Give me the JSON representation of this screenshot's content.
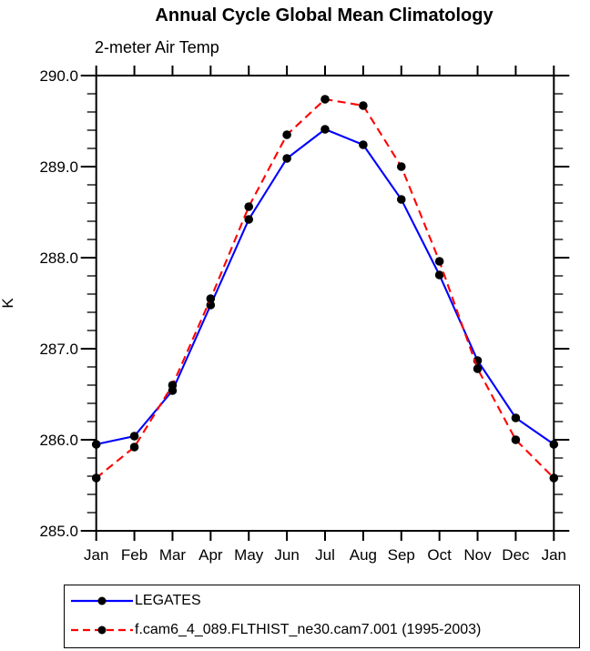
{
  "chart_data": {
    "type": "line",
    "title": "Annual Cycle Global Mean Climatology",
    "subtitle": "2-meter Air Temp",
    "xlabel": "",
    "ylabel": "K",
    "categories": [
      "Jan",
      "Feb",
      "Mar",
      "Apr",
      "May",
      "Jun",
      "Jul",
      "Aug",
      "Sep",
      "Oct",
      "Nov",
      "Dec",
      "Jan"
    ],
    "ylim": [
      285.0,
      290.0
    ],
    "y_major_step": 1.0,
    "y_minor_step": 0.2,
    "y_tick_labels": [
      "285.0",
      "286.0",
      "287.0",
      "288.0",
      "289.0",
      "290.0"
    ],
    "grid": false,
    "legend_position": "bottom-left-box",
    "axis_color": "#000000",
    "marker_shape": "filled-circle",
    "series": [
      {
        "name": "LEGATES",
        "color": "#0000ff",
        "line_style": "solid",
        "marker_color": "#000000",
        "values": [
          285.95,
          286.04,
          286.54,
          287.48,
          288.42,
          289.09,
          289.41,
          289.24,
          288.64,
          287.81,
          286.87,
          286.24,
          285.95
        ]
      },
      {
        "name": "f.cam6_4_089.FLTHIST_ne30.cam7.001 (1995-2003)",
        "color": "#ff0000",
        "line_style": "dashed",
        "marker_color": "#000000",
        "values": [
          285.58,
          285.92,
          286.6,
          287.55,
          288.56,
          289.35,
          289.74,
          289.67,
          289.0,
          287.96,
          286.78,
          286.0,
          285.58
        ]
      }
    ]
  }
}
